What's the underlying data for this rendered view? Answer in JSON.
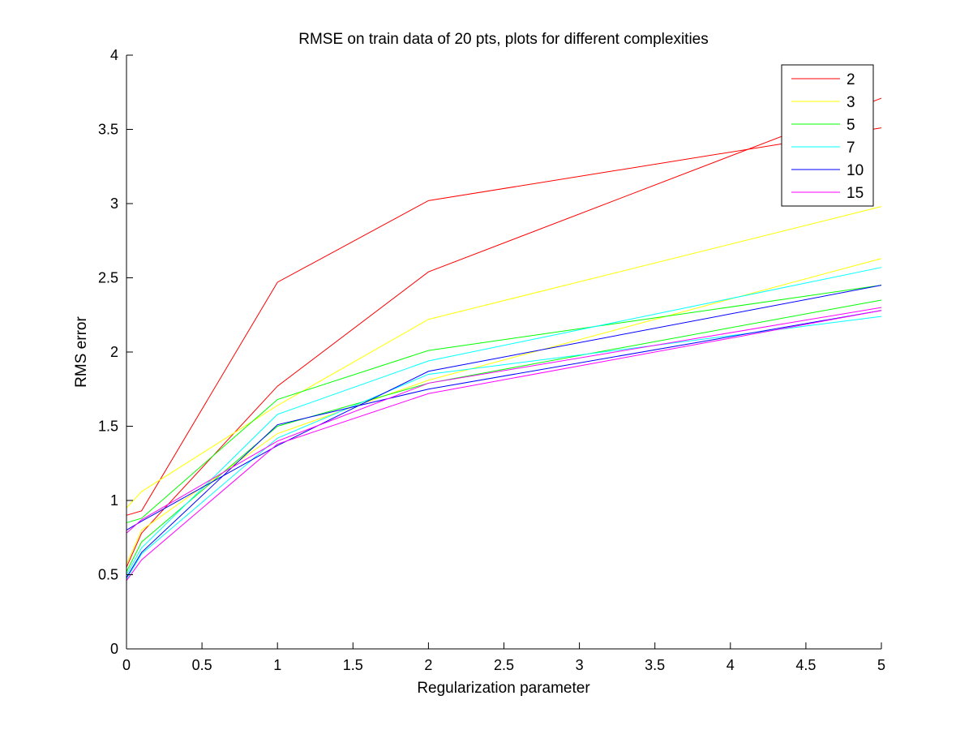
{
  "chart_data": {
    "type": "line",
    "title": "RMSE on train data of 20 pts, plots for different complexities",
    "xlabel": "Regularization parameter",
    "ylabel": "RMS error",
    "xlim": [
      0,
      5
    ],
    "ylim": [
      0,
      4
    ],
    "xticks": [
      "0",
      "0.5",
      "1",
      "1.5",
      "2",
      "2.5",
      "3",
      "3.5",
      "4",
      "4.5",
      "5"
    ],
    "yticks": [
      "0",
      "0.5",
      "1",
      "1.5",
      "2",
      "2.5",
      "3",
      "3.5",
      "4"
    ],
    "grid": false,
    "legend_position": "top-right",
    "legend": [
      {
        "label": "2",
        "color": "#ff0000"
      },
      {
        "label": "3",
        "color": "#ffff00"
      },
      {
        "label": "5",
        "color": "#00ff00"
      },
      {
        "label": "7",
        "color": "#00ffff"
      },
      {
        "label": "10",
        "color": "#0000ff"
      },
      {
        "label": "15",
        "color": "#ff00ff"
      }
    ],
    "series": [
      {
        "name": "2",
        "color": "#ff0000",
        "x": [
          0,
          0.1,
          1,
          2,
          5
        ],
        "y": [
          0.9,
          0.93,
          2.47,
          3.02,
          3.51
        ]
      },
      {
        "name": "2",
        "color": "#ff0000",
        "x": [
          0,
          0.1,
          1,
          2,
          5
        ],
        "y": [
          0.55,
          0.78,
          1.77,
          2.54,
          3.71
        ]
      },
      {
        "name": "3",
        "color": "#ffff00",
        "x": [
          0,
          0.1,
          1,
          2,
          5
        ],
        "y": [
          0.95,
          1.06,
          1.64,
          2.22,
          2.98
        ]
      },
      {
        "name": "3",
        "color": "#ffff00",
        "x": [
          0,
          0.1,
          1,
          2,
          5
        ],
        "y": [
          0.57,
          0.8,
          1.45,
          1.81,
          2.63
        ]
      },
      {
        "name": "5",
        "color": "#00ff00",
        "x": [
          0,
          0.1,
          1,
          2,
          5
        ],
        "y": [
          0.85,
          0.88,
          1.68,
          2.01,
          2.45
        ]
      },
      {
        "name": "5",
        "color": "#00ff00",
        "x": [
          0,
          0.1,
          1,
          2,
          5
        ],
        "y": [
          0.52,
          0.72,
          1.5,
          1.79,
          2.35
        ]
      },
      {
        "name": "7",
        "color": "#00ffff",
        "x": [
          0,
          0.1,
          1,
          2,
          5
        ],
        "y": [
          0.5,
          0.68,
          1.58,
          1.94,
          2.57
        ]
      },
      {
        "name": "7",
        "color": "#00ffff",
        "x": [
          0,
          0.1,
          1,
          2,
          5
        ],
        "y": [
          0.47,
          0.64,
          1.42,
          1.85,
          2.24
        ]
      },
      {
        "name": "10",
        "color": "#0000ff",
        "x": [
          0,
          0.1,
          1,
          2,
          5
        ],
        "y": [
          0.8,
          0.86,
          1.37,
          1.87,
          2.45
        ]
      },
      {
        "name": "10",
        "color": "#0000ff",
        "x": [
          0,
          0.1,
          1,
          2,
          5
        ],
        "y": [
          0.48,
          0.65,
          1.51,
          1.75,
          2.28
        ]
      },
      {
        "name": "15",
        "color": "#ff00ff",
        "x": [
          0,
          0.1,
          1,
          2,
          5
        ],
        "y": [
          0.78,
          0.87,
          1.4,
          1.79,
          2.3
        ]
      },
      {
        "name": "15",
        "color": "#ff00ff",
        "x": [
          0,
          0.1,
          1,
          2,
          5
        ],
        "y": [
          0.46,
          0.6,
          1.38,
          1.72,
          2.28
        ]
      }
    ]
  }
}
